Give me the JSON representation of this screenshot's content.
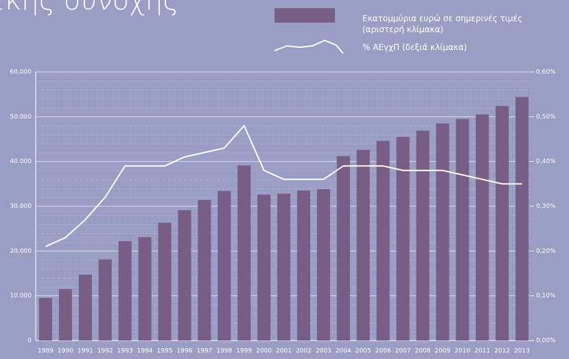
{
  "chart_data": {
    "type": "bar_line",
    "title": "ικής συνοχής",
    "categories": [
      "1989",
      "1990",
      "1991",
      "1992",
      "1993",
      "1994",
      "1995",
      "1996",
      "1997",
      "1998",
      "1999",
      "2000",
      "2001",
      "2002",
      "2003",
      "2004",
      "2005",
      "2006",
      "2007",
      "2008",
      "2009",
      "2010",
      "2011",
      "2012",
      "2013"
    ],
    "series": [
      {
        "name": "Εκατομμύρια ευρώ σε σημερινές τιμές (αριστερή κλίμακα)",
        "type": "bar",
        "color": "#785d85",
        "values": [
          9500,
          11500,
          14700,
          18100,
          22200,
          23100,
          26300,
          29100,
          31400,
          33400,
          39100,
          32600,
          32800,
          33500,
          33800,
          41200,
          42600,
          44600,
          45500,
          46900,
          48500,
          49500,
          50500,
          52400,
          54400
        ]
      },
      {
        "name": "% ΑΕγχΠ (δεξιά κλίμακα)",
        "type": "line",
        "axis": "y2",
        "color": "#ffffff",
        "values": [
          0.21,
          0.23,
          0.27,
          0.32,
          0.39,
          0.39,
          0.39,
          0.41,
          0.42,
          0.43,
          0.48,
          0.38,
          0.36,
          0.36,
          0.36,
          0.39,
          0.39,
          0.39,
          0.38,
          0.38,
          0.38,
          0.37,
          0.36,
          0.35,
          0.35
        ]
      }
    ],
    "ylim": [
      0,
      60000
    ],
    "yticks": [
      0,
      {
        "value": 10000,
        "label": "10.000"
      },
      {
        "value": 20000,
        "label": "20.000"
      },
      {
        "value": 30000,
        "label": "30.000"
      },
      {
        "value": 40000,
        "label": "40.000"
      },
      {
        "value": 50000,
        "label": "50.000"
      },
      {
        "value": 60000,
        "label": "60.000"
      }
    ],
    "y2lim": [
      0,
      0.6
    ],
    "y2ticks": [
      {
        "value": 0,
        "label": "0,00%"
      },
      {
        "value": 0.1,
        "label": "0,10%"
      },
      {
        "value": 0.2,
        "label": "0,20%"
      },
      {
        "value": 0.3,
        "label": "0,30%"
      },
      {
        "value": 0.4,
        "label": "0,40%"
      },
      {
        "value": 0.5,
        "label": "0,50%"
      },
      {
        "value": 0.6,
        "label": "0,60%"
      }
    ],
    "grid": true
  }
}
